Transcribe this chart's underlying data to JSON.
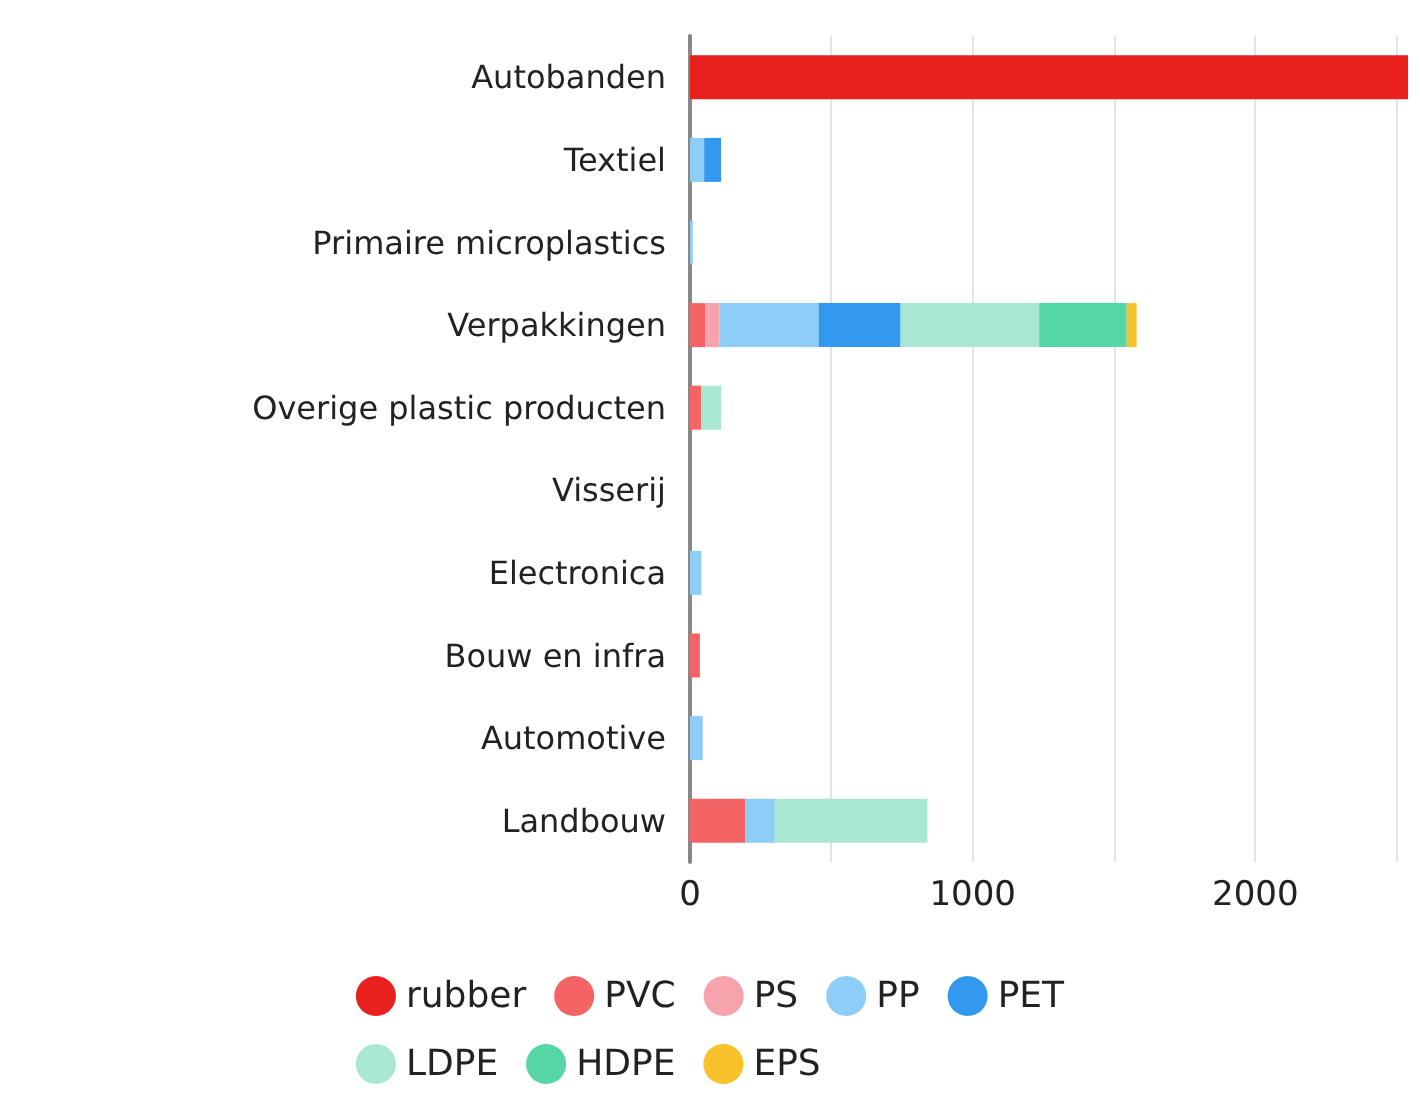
{
  "chart_data": {
    "type": "bar",
    "orientation": "horizontal",
    "stacked": true,
    "categories": [
      "Autobanden",
      "Textiel",
      "Primaire microplastics",
      "Verpakkingen",
      "Overige plastic producten",
      "Visserij",
      "Electronica",
      "Bouw en infra",
      "Automotive",
      "Landbouw"
    ],
    "series": [
      {
        "name": "rubber",
        "color": "#e8201e",
        "values": [
          2540,
          null,
          null,
          null,
          null,
          null,
          null,
          null,
          null,
          null
        ]
      },
      {
        "name": "PVC",
        "color": "#f56464",
        "values": [
          null,
          null,
          null,
          55,
          40,
          null,
          null,
          35,
          null,
          195
        ]
      },
      {
        "name": "PS",
        "color": "#f7a3ad",
        "values": [
          null,
          null,
          null,
          50,
          null,
          null,
          null,
          null,
          null,
          null
        ]
      },
      {
        "name": "PP",
        "color": "#8ecdf7",
        "values": [
          null,
          50,
          10,
          350,
          null,
          null,
          40,
          null,
          45,
          105
        ]
      },
      {
        "name": "PET",
        "color": "#3399ee",
        "values": [
          null,
          60,
          null,
          290,
          null,
          null,
          null,
          null,
          null,
          null
        ]
      },
      {
        "name": "LDPE",
        "color": "#a8e8d2",
        "values": [
          null,
          null,
          null,
          490,
          70,
          null,
          null,
          null,
          null,
          540
        ]
      },
      {
        "name": "HDPE",
        "color": "#55d6a5",
        "values": [
          null,
          null,
          null,
          310,
          null,
          null,
          null,
          null,
          null,
          null
        ]
      },
      {
        "name": "EPS",
        "color": "#f8c22c",
        "values": [
          null,
          null,
          null,
          35,
          null,
          null,
          null,
          null,
          null,
          null
        ]
      }
    ],
    "xlim": [
      0,
      2540
    ],
    "xticks": [
      0,
      {
        "value": 500,
        "label": null
      },
      1000,
      {
        "value": 1500,
        "label": null
      },
      2000,
      {
        "value": 2500,
        "label": null
      }
    ],
    "grid": "x",
    "legend": "bottom",
    "marker": "circle"
  }
}
